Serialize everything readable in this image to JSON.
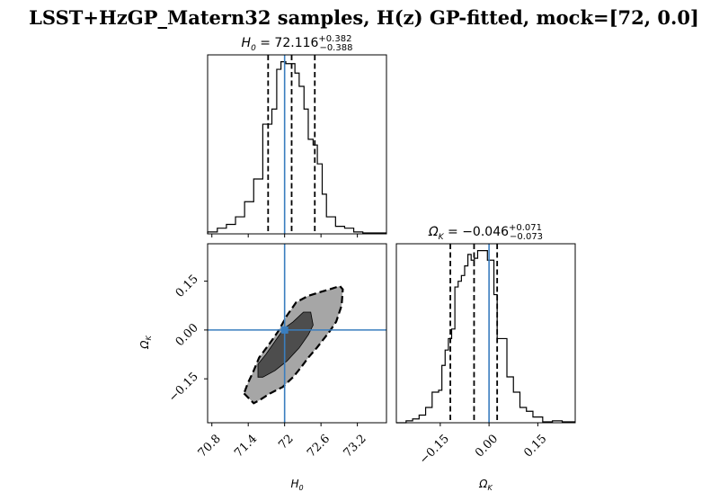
{
  "title": "LSST+HzGP_Matern32 samples, H(z) GP-fitted, mock=[72, 0.0]",
  "colors": {
    "truth": "#3a7ebf",
    "inner_contour": "#4d4d4d",
    "outer_contour": "#a6a6a6",
    "line": "#000000"
  },
  "chart_data": [
    {
      "type": "histogram",
      "panel": "marginal-H0",
      "title_label": "H",
      "title_sub": "0",
      "title_value": " = 72.116",
      "title_plus": "+0.382",
      "title_minus": "−0.388",
      "xlim": [
        70.73,
        73.68
      ],
      "ticks": [
        70.8,
        71.4,
        72.0,
        72.6,
        73.2
      ],
      "bin_edges": [
        70.73,
        70.89,
        71.04,
        71.19,
        71.34,
        71.49,
        71.64,
        71.79,
        71.87,
        71.94,
        72.02,
        72.09,
        72.17,
        72.24,
        72.32,
        72.39,
        72.47,
        72.54,
        72.62,
        72.69,
        72.84,
        72.99,
        73.14,
        73.29,
        73.44,
        73.68
      ],
      "counts": [
        1,
        3,
        5,
        9,
        17,
        29,
        58,
        66,
        87,
        91,
        90,
        90,
        85,
        78,
        66,
        50,
        47,
        37,
        21,
        9,
        4,
        3,
        1,
        0.5,
        0.5
      ],
      "quantiles": [
        71.728,
        72.116,
        72.498
      ],
      "truth": 72.0
    },
    {
      "type": "histogram",
      "panel": "marginal-OmegaK",
      "title_label": "Ω",
      "title_sub": "K",
      "title_value": " = −0.046",
      "title_plus": "+0.071",
      "title_minus": "−0.073",
      "xlim": [
        -0.285,
        0.265
      ],
      "ticks": [
        -0.15,
        0.0,
        0.15
      ],
      "tick_labels": [
        "−0.15",
        "0.00",
        "0.15"
      ],
      "bin_edges": [
        -0.285,
        -0.255,
        -0.235,
        -0.215,
        -0.195,
        -0.175,
        -0.155,
        -0.145,
        -0.135,
        -0.125,
        -0.115,
        -0.105,
        -0.095,
        -0.085,
        -0.075,
        -0.065,
        -0.055,
        -0.045,
        -0.035,
        -0.025,
        -0.015,
        -0.005,
        0.005,
        0.015,
        0.025,
        0.035,
        0.055,
        0.075,
        0.095,
        0.115,
        0.135,
        0.165,
        0.195,
        0.225,
        0.265
      ],
      "counts": [
        0,
        1,
        2,
        4,
        8,
        16,
        17,
        30,
        38,
        44,
        49,
        71,
        74,
        77,
        82,
        88,
        85,
        86,
        90,
        90,
        90,
        85,
        85,
        67,
        44,
        44,
        24,
        16,
        8,
        6,
        3,
        0.5,
        1,
        0.5
      ],
      "quantiles": [
        -0.119,
        -0.046,
        0.025
      ],
      "truth": 0.0
    },
    {
      "type": "contour",
      "panel": "joint-H0-OmegaK",
      "xlim": [
        70.73,
        73.68
      ],
      "ylim": [
        -0.285,
        0.265
      ],
      "xticks": [
        70.8,
        71.4,
        72.0,
        72.6,
        73.2
      ],
      "yticks": [
        -0.15,
        0.0,
        0.15
      ],
      "ytick_labels": [
        "−0.15",
        "0.00",
        "0.15"
      ],
      "xlabel": "H",
      "xlabel_sub": "0",
      "ylabel": "Ω",
      "ylabel_sub": "K",
      "truth": [
        72.0,
        0.0
      ],
      "outer_contour": [
        [
          71.33,
          -0.195
        ],
        [
          71.49,
          -0.225
        ],
        [
          71.59,
          -0.215
        ],
        [
          71.76,
          -0.195
        ],
        [
          71.97,
          -0.175
        ],
        [
          72.14,
          -0.145
        ],
        [
          72.27,
          -0.115
        ],
        [
          72.39,
          -0.085
        ],
        [
          72.53,
          -0.055
        ],
        [
          72.74,
          -0.005
        ],
        [
          72.85,
          0.025
        ],
        [
          72.94,
          0.075
        ],
        [
          72.96,
          0.125
        ],
        [
          72.91,
          0.135
        ],
        [
          72.74,
          0.125
        ],
        [
          72.56,
          0.115
        ],
        [
          72.39,
          0.105
        ],
        [
          72.19,
          0.085
        ],
        [
          72.04,
          0.045
        ],
        [
          71.89,
          -0.005
        ],
        [
          71.74,
          -0.045
        ],
        [
          71.58,
          -0.085
        ],
        [
          71.49,
          -0.125
        ],
        [
          71.39,
          -0.165
        ]
      ],
      "inner_contour": [
        [
          71.56,
          -0.145
        ],
        [
          71.64,
          -0.145
        ],
        [
          71.84,
          -0.125
        ],
        [
          72.04,
          -0.095
        ],
        [
          72.24,
          -0.055
        ],
        [
          72.39,
          -0.015
        ],
        [
          72.47,
          0.015
        ],
        [
          72.43,
          0.055
        ],
        [
          72.31,
          0.055
        ],
        [
          72.14,
          0.025
        ],
        [
          71.99,
          0.005
        ],
        [
          71.84,
          -0.035
        ],
        [
          71.69,
          -0.075
        ],
        [
          71.56,
          -0.105
        ]
      ]
    }
  ]
}
